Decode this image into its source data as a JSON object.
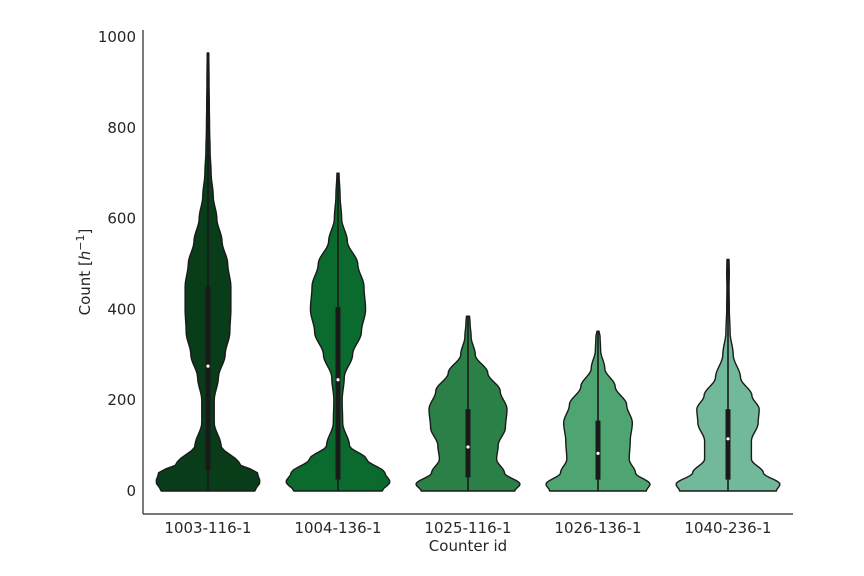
{
  "chart_data": {
    "type": "violin",
    "title": "",
    "xlabel": "Counter id",
    "ylabel_prefix": "Count [",
    "ylabel_unit_base": "h",
    "ylabel_unit_exp": "−1",
    "ylabel_suffix": "]",
    "ylim": [
      -50,
      1010
    ],
    "yticks": [
      0,
      200,
      400,
      600,
      800,
      1000
    ],
    "grid": false,
    "categories": [
      "1003-116-1",
      "1004-136-1",
      "1025-116-1",
      "1026-136-1",
      "1040-236-1"
    ],
    "colors": [
      "#093d1a",
      "#0b6b2e",
      "#2b8048",
      "#4ea572",
      "#72b89b"
    ],
    "series": [
      {
        "category": "1003-116-1",
        "min": 0,
        "max": 965,
        "q1": 45,
        "median": 275,
        "q3": 450,
        "profile": [
          [
            0,
            0.9
          ],
          [
            20,
            1.0
          ],
          [
            40,
            0.95
          ],
          [
            60,
            0.6
          ],
          [
            100,
            0.25
          ],
          [
            150,
            0.12
          ],
          [
            200,
            0.12
          ],
          [
            250,
            0.2
          ],
          [
            300,
            0.33
          ],
          [
            350,
            0.42
          ],
          [
            400,
            0.44
          ],
          [
            450,
            0.44
          ],
          [
            500,
            0.38
          ],
          [
            550,
            0.27
          ],
          [
            600,
            0.17
          ],
          [
            650,
            0.1
          ],
          [
            700,
            0.06
          ],
          [
            750,
            0.04
          ],
          [
            800,
            0.03
          ],
          [
            850,
            0.025
          ],
          [
            900,
            0.02
          ],
          [
            965,
            0.015
          ]
        ]
      },
      {
        "category": "1004-136-1",
        "min": 0,
        "max": 700,
        "q1": 25,
        "median": 245,
        "q3": 405,
        "profile": [
          [
            0,
            0.85
          ],
          [
            20,
            1.0
          ],
          [
            40,
            0.9
          ],
          [
            70,
            0.55
          ],
          [
            100,
            0.22
          ],
          [
            150,
            0.09
          ],
          [
            200,
            0.08
          ],
          [
            250,
            0.12
          ],
          [
            300,
            0.28
          ],
          [
            350,
            0.45
          ],
          [
            400,
            0.53
          ],
          [
            450,
            0.5
          ],
          [
            500,
            0.38
          ],
          [
            550,
            0.18
          ],
          [
            600,
            0.07
          ],
          [
            650,
            0.04
          ],
          [
            700,
            0.02
          ]
        ]
      },
      {
        "category": "1025-116-1",
        "min": 0,
        "max": 385,
        "q1": 30,
        "median": 97,
        "q3": 180,
        "profile": [
          [
            0,
            0.9
          ],
          [
            15,
            1.0
          ],
          [
            40,
            0.7
          ],
          [
            70,
            0.55
          ],
          [
            100,
            0.58
          ],
          [
            140,
            0.72
          ],
          [
            180,
            0.75
          ],
          [
            220,
            0.62
          ],
          [
            260,
            0.38
          ],
          [
            300,
            0.14
          ],
          [
            340,
            0.06
          ],
          [
            370,
            0.04
          ],
          [
            385,
            0.03
          ]
        ]
      },
      {
        "category": "1026-136-1",
        "min": 0,
        "max": 352,
        "q1": 25,
        "median": 83,
        "q3": 155,
        "profile": [
          [
            0,
            0.93
          ],
          [
            15,
            1.0
          ],
          [
            40,
            0.72
          ],
          [
            70,
            0.6
          ],
          [
            110,
            0.62
          ],
          [
            150,
            0.66
          ],
          [
            190,
            0.55
          ],
          [
            230,
            0.33
          ],
          [
            270,
            0.13
          ],
          [
            310,
            0.05
          ],
          [
            340,
            0.04
          ],
          [
            352,
            0.02
          ]
        ]
      },
      {
        "category": "1040-236-1",
        "min": 0,
        "max": 510,
        "q1": 25,
        "median": 115,
        "q3": 180,
        "profile": [
          [
            0,
            0.93
          ],
          [
            15,
            1.0
          ],
          [
            40,
            0.68
          ],
          [
            70,
            0.45
          ],
          [
            110,
            0.45
          ],
          [
            150,
            0.58
          ],
          [
            180,
            0.6
          ],
          [
            210,
            0.46
          ],
          [
            250,
            0.24
          ],
          [
            300,
            0.1
          ],
          [
            350,
            0.04
          ],
          [
            400,
            0.025
          ],
          [
            450,
            0.02
          ],
          [
            480,
            0.025
          ],
          [
            510,
            0.02
          ]
        ]
      }
    ]
  }
}
